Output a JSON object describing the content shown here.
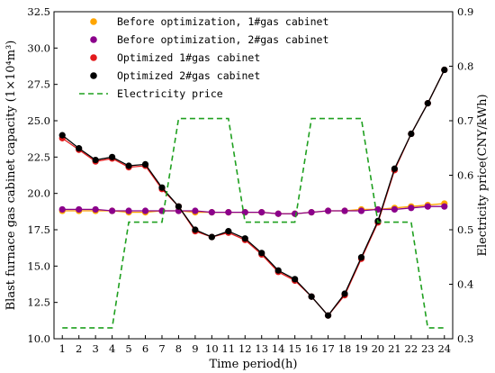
{
  "chart_data": {
    "type": "line",
    "x": [
      1,
      2,
      3,
      4,
      5,
      6,
      7,
      8,
      9,
      10,
      11,
      12,
      13,
      14,
      15,
      16,
      17,
      18,
      19,
      20,
      21,
      22,
      23,
      24
    ],
    "xlabel": "Time period(h)",
    "ylabel": "Blast furnace gas cabinet capacity (1×10⁴m³)",
    "y2label": "Electricity price(CNY/kWh)",
    "xlim": [
      0.5,
      24.5
    ],
    "ylim": [
      10.0,
      32.5
    ],
    "y2lim": [
      0.3,
      0.9
    ],
    "yticks": [
      "10.0",
      "12.5",
      "15.0",
      "17.5",
      "20.0",
      "22.5",
      "25.0",
      "27.5",
      "30.0",
      "32.5"
    ],
    "y2ticks": [
      "0.3",
      "0.4",
      "0.5",
      "0.6",
      "0.7",
      "0.8",
      "0.9"
    ],
    "legend_position": "top-left",
    "series": [
      {
        "name": "Before optimization, 1#gas cabinet",
        "color": "#ffa500",
        "axis": "left",
        "marker": "circle",
        "values": [
          18.8,
          18.8,
          18.8,
          18.8,
          18.7,
          18.7,
          18.8,
          18.8,
          18.7,
          18.7,
          18.7,
          18.7,
          18.7,
          18.6,
          18.6,
          18.7,
          18.8,
          18.8,
          18.9,
          18.9,
          19.0,
          19.1,
          19.2,
          19.3
        ]
      },
      {
        "name": "Before optimization, 2#gas cabinet",
        "color": "#8b008b",
        "axis": "left",
        "marker": "circle",
        "values": [
          18.9,
          18.9,
          18.9,
          18.8,
          18.8,
          18.8,
          18.8,
          18.8,
          18.8,
          18.7,
          18.7,
          18.7,
          18.7,
          18.6,
          18.6,
          18.7,
          18.8,
          18.8,
          18.8,
          18.9,
          18.9,
          19.0,
          19.1,
          19.1
        ]
      },
      {
        "name": "Optimized 1#gas cabinet",
        "color": "#e31a1c",
        "axis": "left",
        "marker": "circle",
        "values": [
          23.8,
          23.0,
          22.2,
          22.4,
          21.8,
          21.9,
          20.3,
          19.1,
          17.4,
          17.0,
          17.3,
          16.8,
          15.8,
          14.6,
          14.0,
          12.9,
          11.6,
          13.0,
          15.5,
          18.0,
          21.6,
          24.1,
          26.2,
          28.5
        ]
      },
      {
        "name": "Optimized 2#gas cabinet",
        "color": "#000000",
        "axis": "left",
        "marker": "circle",
        "values": [
          24.0,
          23.1,
          22.3,
          22.5,
          21.9,
          22.0,
          20.4,
          19.1,
          17.5,
          17.0,
          17.4,
          16.9,
          15.9,
          14.7,
          14.1,
          12.9,
          11.6,
          13.1,
          15.6,
          18.1,
          21.7,
          24.1,
          26.2,
          28.5
        ]
      },
      {
        "name": "Electricity price",
        "color": "#1fa01f",
        "axis": "right",
        "style": "dashed",
        "points": [
          [
            1,
            0.32
          ],
          [
            4,
            0.32
          ],
          [
            5,
            0.514
          ],
          [
            7,
            0.514
          ],
          [
            8,
            0.704
          ],
          [
            11,
            0.704
          ],
          [
            12,
            0.514
          ],
          [
            15,
            0.514
          ],
          [
            16,
            0.704
          ],
          [
            19,
            0.704
          ],
          [
            20,
            0.514
          ],
          [
            22,
            0.514
          ],
          [
            23,
            0.32
          ],
          [
            24,
            0.32
          ]
        ]
      }
    ]
  }
}
